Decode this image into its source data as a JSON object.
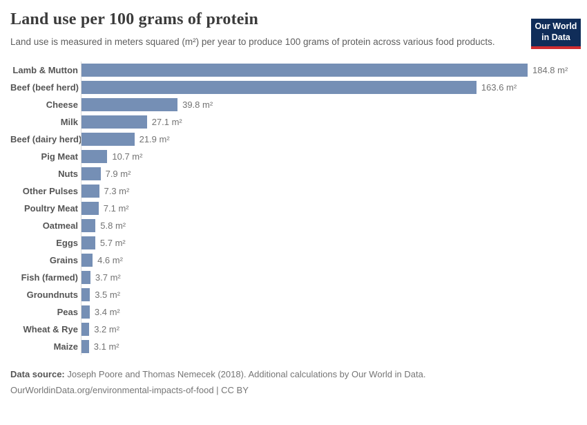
{
  "header": {
    "title": "Land use per 100 grams of protein",
    "subtitle": "Land use is measured in meters squared (m²) per year to produce 100 grams of protein across various food products.",
    "logo": {
      "line1": "Our World",
      "line2": "in Data"
    }
  },
  "chart_data": {
    "type": "bar",
    "orientation": "horizontal",
    "title": "Land use per 100 grams of protein",
    "unit": "m²",
    "xlabel": "",
    "ylabel": "",
    "xlim": [
      0,
      190
    ],
    "grid": false,
    "legend": false,
    "bar_color": "#758fb5",
    "categories": [
      "Lamb & Mutton",
      "Beef (beef herd)",
      "Cheese",
      "Milk",
      "Beef (dairy herd)",
      "Pig Meat",
      "Nuts",
      "Other Pulses",
      "Poultry Meat",
      "Oatmeal",
      "Eggs",
      "Grains",
      "Fish (farmed)",
      "Groundnuts",
      "Peas",
      "Wheat & Rye",
      "Maize"
    ],
    "values": [
      184.8,
      163.6,
      39.8,
      27.1,
      21.9,
      10.7,
      7.9,
      7.3,
      7.1,
      5.8,
      5.7,
      4.6,
      3.7,
      3.5,
      3.4,
      3.2,
      3.1
    ],
    "value_labels": [
      "184.8 m²",
      "163.6 m²",
      "39.8 m²",
      "27.1 m²",
      "21.9 m²",
      "10.7 m²",
      "7.9 m²",
      "7.3 m²",
      "7.1 m²",
      "5.8 m²",
      "5.7 m²",
      "4.6 m²",
      "3.7 m²",
      "3.5 m²",
      "3.4 m²",
      "3.2 m²",
      "3.1 m²"
    ]
  },
  "footer": {
    "source_label": "Data source:",
    "source_rest": " Joseph Poore and Thomas Nemecek (2018). Additional calculations by Our World in Data.",
    "link_line": "OurWorldinData.org/environmental-impacts-of-food | CC BY"
  },
  "colors": {
    "bar": "#758fb5",
    "axis_line": "#d9d9d9",
    "title_text": "#3b3b3b",
    "subtitle_text": "#5e5e5e",
    "category_text": "#555555",
    "value_text": "#737373",
    "logo_bg": "#102d59",
    "logo_stripe": "#cf2d30"
  }
}
